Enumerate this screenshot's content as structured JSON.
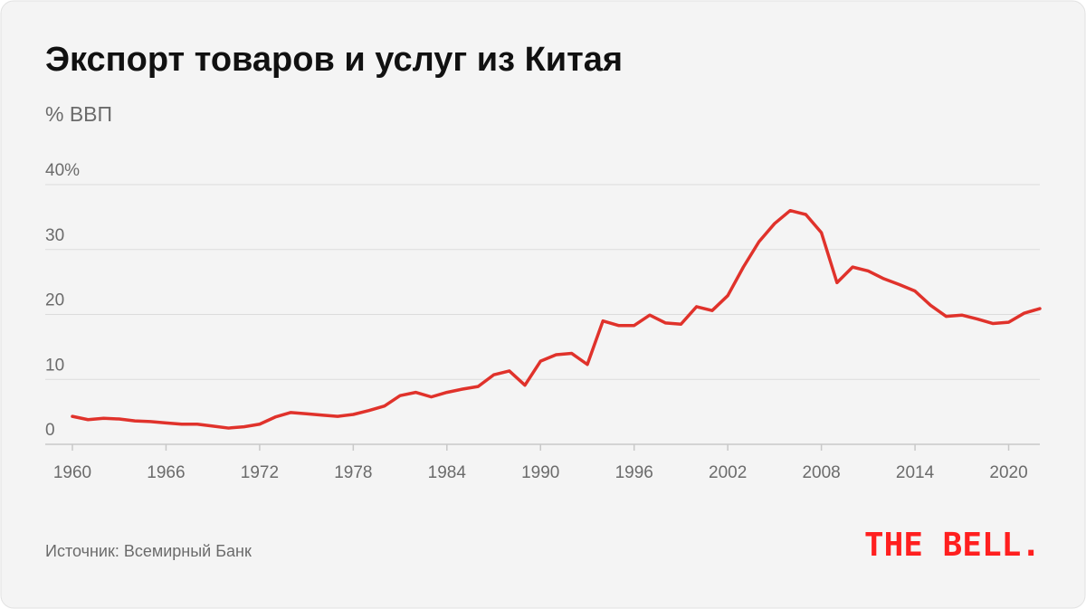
{
  "chart_data": {
    "type": "line",
    "title": "Экспорт товаров и услуг из Китая",
    "subtitle": "% ВВП",
    "source": "Источник: Всемирный Банк",
    "logo": "THE BELL.",
    "x": [
      1960,
      1961,
      1962,
      1963,
      1964,
      1965,
      1966,
      1967,
      1968,
      1969,
      1970,
      1971,
      1972,
      1973,
      1974,
      1975,
      1976,
      1977,
      1978,
      1979,
      1980,
      1981,
      1982,
      1983,
      1984,
      1985,
      1986,
      1987,
      1988,
      1989,
      1990,
      1991,
      1992,
      1993,
      1994,
      1995,
      1996,
      1997,
      1998,
      1999,
      2000,
      2001,
      2002,
      2003,
      2004,
      2005,
      2006,
      2007,
      2008,
      2009,
      2010,
      2011,
      2012,
      2013,
      2014,
      2015,
      2016,
      2017,
      2018,
      2019,
      2020,
      2021,
      2022
    ],
    "series": [
      {
        "name": "Экспорт",
        "color": "#e0322b",
        "values": [
          4.3,
          3.8,
          4.0,
          3.9,
          3.6,
          3.5,
          3.3,
          3.1,
          3.1,
          2.8,
          2.5,
          2.7,
          3.1,
          4.2,
          4.9,
          4.7,
          4.5,
          4.3,
          4.6,
          5.2,
          5.9,
          7.5,
          8.0,
          7.3,
          8.0,
          8.5,
          8.9,
          10.7,
          11.3,
          9.1,
          12.8,
          13.8,
          14.0,
          12.3,
          19.0,
          18.3,
          18.3,
          19.9,
          18.7,
          18.5,
          21.2,
          20.6,
          22.9,
          27.3,
          31.2,
          34.0,
          36.0,
          35.4,
          32.6,
          24.9,
          27.3,
          26.7,
          25.5,
          24.6,
          23.6,
          21.4,
          19.7,
          19.9,
          19.3,
          18.6,
          18.8,
          20.2,
          20.9
        ]
      }
    ],
    "xlim": [
      1960,
      2022
    ],
    "xticks": [
      1960,
      1966,
      1972,
      1978,
      1984,
      1990,
      1996,
      2002,
      2008,
      2014,
      2020
    ],
    "ylim": [
      0,
      40
    ],
    "yticks": [
      0,
      10,
      20,
      30,
      {
        "value": 40,
        "label": "40%"
      }
    ],
    "grid": true
  }
}
